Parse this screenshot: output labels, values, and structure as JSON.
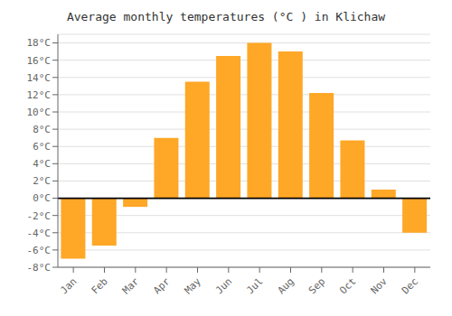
{
  "chart_data": {
    "type": "bar",
    "title": "Average monthly temperatures (°C ) in Klichaw",
    "categories": [
      "Jan",
      "Feb",
      "Mar",
      "Apr",
      "May",
      "Jun",
      "Jul",
      "Aug",
      "Sep",
      "Oct",
      "Nov",
      "Dec"
    ],
    "values": [
      -7.0,
      -5.5,
      -1.0,
      7.0,
      13.5,
      16.5,
      18.0,
      17.0,
      12.2,
      6.7,
      1.0,
      -4.0
    ],
    "color": "#FFA726",
    "ylim": [
      -8,
      19
    ],
    "yticks": [
      {
        "value": -8,
        "label": "-8°C"
      },
      {
        "value": -6,
        "label": "-6°C"
      },
      {
        "value": -4,
        "label": "-4°C"
      },
      {
        "value": -2,
        "label": "-2°C"
      },
      {
        "value": 0,
        "label": "0°C"
      },
      {
        "value": 2,
        "label": "2°C"
      },
      {
        "value": 4,
        "label": "4°C"
      },
      {
        "value": 6,
        "label": "6°C"
      },
      {
        "value": 8,
        "label": "8°C"
      },
      {
        "value": 10,
        "label": "10°C"
      },
      {
        "value": 12,
        "label": "12°C"
      },
      {
        "value": 14,
        "label": "14°C"
      },
      {
        "value": 16,
        "label": "16°C"
      },
      {
        "value": 18,
        "label": "18°C"
      }
    ],
    "grid": true
  }
}
